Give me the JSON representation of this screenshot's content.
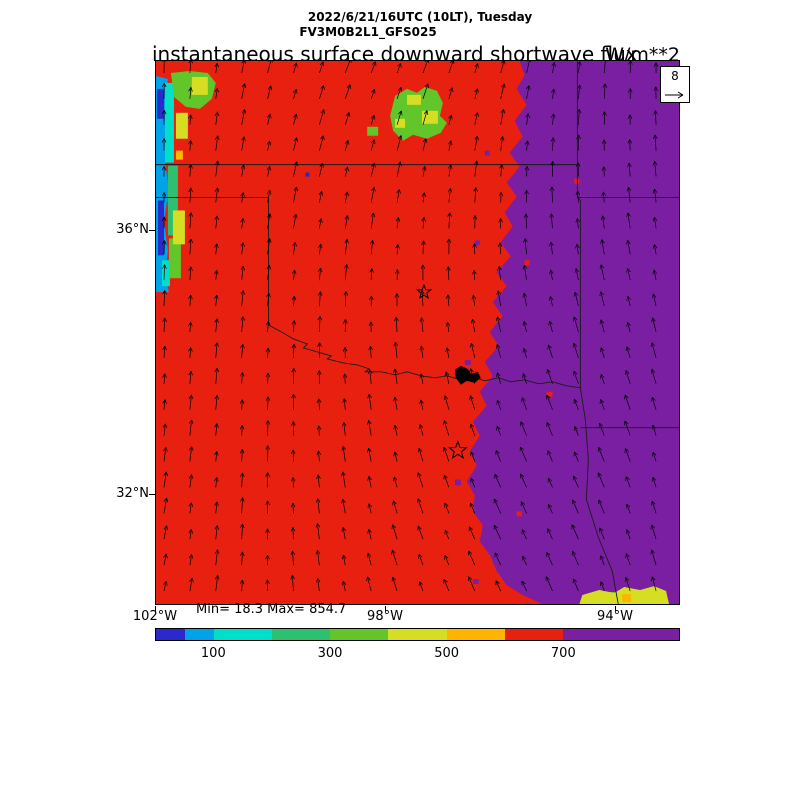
{
  "header": {
    "datetime_line": "2022/6/21/16UTC (10LT), Tuesday",
    "model_line": "FV3M0B2L1_GFS025",
    "title": "instantaneous surface downward shortwave flux",
    "units": "W/m**2"
  },
  "map": {
    "lat_ticks": [
      {
        "label": "36°N",
        "lat": 36
      },
      {
        "label": "32°N",
        "lat": 32
      }
    ],
    "lon_ticks": [
      {
        "label": "102°W",
        "lon": 102
      },
      {
        "label": "98°W",
        "lon": 98
      },
      {
        "label": "94°W",
        "lon": 94
      }
    ],
    "reference_vector": {
      "value": "8"
    },
    "stats": "Min= 18.3 Max= 854.7"
  },
  "chart_data": {
    "type": "heatmap",
    "title": "instantaneous surface downward shortwave flux",
    "units": "W/m**2",
    "valid_time": "2022/6/21/16UTC (10LT), Tuesday",
    "model": "FV3M0B2L1_GFS025",
    "field_min": 18.3,
    "field_max": 854.7,
    "axes": {
      "lon_ticks": [
        "102°W",
        "98°W",
        "94°W"
      ],
      "lat_ticks": [
        "36°N",
        "32°N"
      ]
    },
    "colorbar": {
      "orientation": "horizontal",
      "boundaries": [
        0,
        50,
        100,
        200,
        300,
        400,
        500,
        600,
        700,
        900
      ],
      "colors": [
        "#2929cc",
        "#00a2e8",
        "#00e0c8",
        "#2ec06e",
        "#62c62a",
        "#d6de23",
        "#ffb400",
        "#e82010",
        "#7a1fa2"
      ],
      "tick_labels": [
        100,
        300,
        500,
        700
      ]
    },
    "wind_overlay": {
      "type": "vectors",
      "reference_value": 8
    },
    "field_summary": "Red band (600-700 W/m**2) covers the western two-thirds of the domain; purple (>700 W/m**2) covers the eastern third; low-flux cloud patches (blue/cyan/green/yellow) along the northwest edge, north-center, and bottom-right edge; two star markers plotted over the red region."
  }
}
